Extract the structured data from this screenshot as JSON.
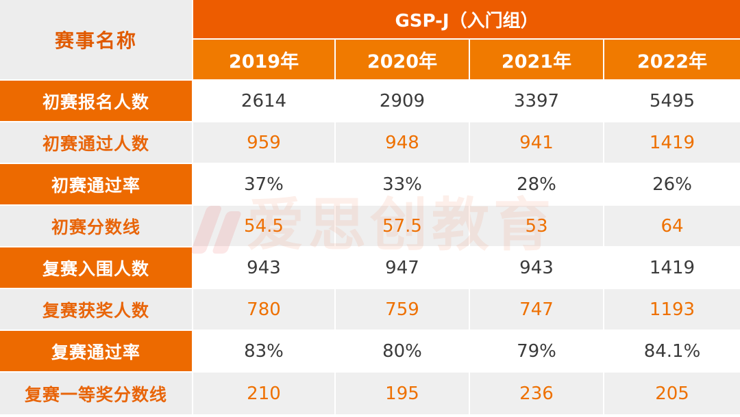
{
  "chart_data": {
    "type": "table",
    "title": "GSP-J（入门组）",
    "row_header_label": "赛事名称",
    "columns": [
      "2019年",
      "2020年",
      "2021年",
      "2022年"
    ],
    "rows": [
      {
        "label": "初赛报名人数",
        "values": [
          "2614",
          "2909",
          "3397",
          "5495"
        ]
      },
      {
        "label": "初赛通过人数",
        "values": [
          "959",
          "948",
          "941",
          "1419"
        ]
      },
      {
        "label": "初赛通过率",
        "values": [
          "37%",
          "33%",
          "28%",
          "26%"
        ]
      },
      {
        "label": "初赛分数线",
        "values": [
          "54.5",
          "57.5",
          "53",
          "64"
        ]
      },
      {
        "label": "复赛入围人数",
        "values": [
          "943",
          "947",
          "943",
          "1419"
        ]
      },
      {
        "label": "复赛获奖人数",
        "values": [
          "780",
          "759",
          "747",
          "1193"
        ]
      },
      {
        "label": "复赛通过率",
        "values": [
          "83%",
          "80%",
          "79%",
          "84.1%"
        ]
      },
      {
        "label": "复赛一等奖分数线",
        "values": [
          "210",
          "195",
          "236",
          "205"
        ]
      }
    ]
  },
  "watermark": {
    "text": "爱思创教育",
    "logo": "brand-logo-icon"
  },
  "colors": {
    "header_orange": "#ed5c00",
    "year_orange": "#f07a00",
    "label_orange": "#ed6a00",
    "accent_text": "#ee7000",
    "grey": "#ededed"
  }
}
